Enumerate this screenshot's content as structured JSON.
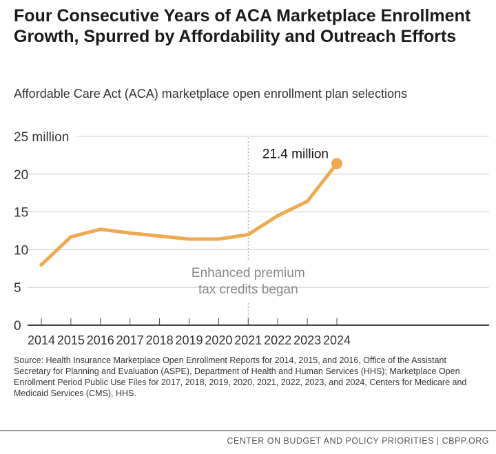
{
  "title": "Four Consecutive Years of ACA Marketplace Enrollment Growth, Spurred by Affordability and Outreach Efforts",
  "subtitle": "Affordable Care Act (ACA) marketplace open enrollment plan selections",
  "chart_data": {
    "type": "line",
    "categories": [
      "2014",
      "2015",
      "2016",
      "2017",
      "2018",
      "2019",
      "2020",
      "2021",
      "2022",
      "2023",
      "2024"
    ],
    "values": [
      8.0,
      11.7,
      12.7,
      12.2,
      11.8,
      11.4,
      11.4,
      12.0,
      14.5,
      16.4,
      21.4
    ],
    "ylim": [
      0,
      25
    ],
    "yticks": [
      0,
      5,
      10,
      15,
      20,
      25
    ],
    "ytick_labels": [
      "0",
      "5",
      "10",
      "15",
      "20",
      "25 million"
    ],
    "grid": true,
    "line_color": "#f0a94f",
    "end_label": "21.4 million",
    "annotation": {
      "x": "2021",
      "lines": [
        "Enhanced premium",
        "tax credits began"
      ]
    }
  },
  "source": "Source: Health Insurance Marketplace Open Enrollment Reports for 2014, 2015, and 2016, Office of the Assistant Secretary for Planning and Evaluation (ASPE), Department of Health and Human Services (HHS); Marketplace Open Enrollment Period Public Use Files for 2017, 2018, 2019, 2020, 2021, 2022, 2023, and 2024, Centers for Medicare and Medicaid Services (CMS), HHS.",
  "footer": "CENTER ON BUDGET AND POLICY PRIORITIES | CBPP.ORG"
}
